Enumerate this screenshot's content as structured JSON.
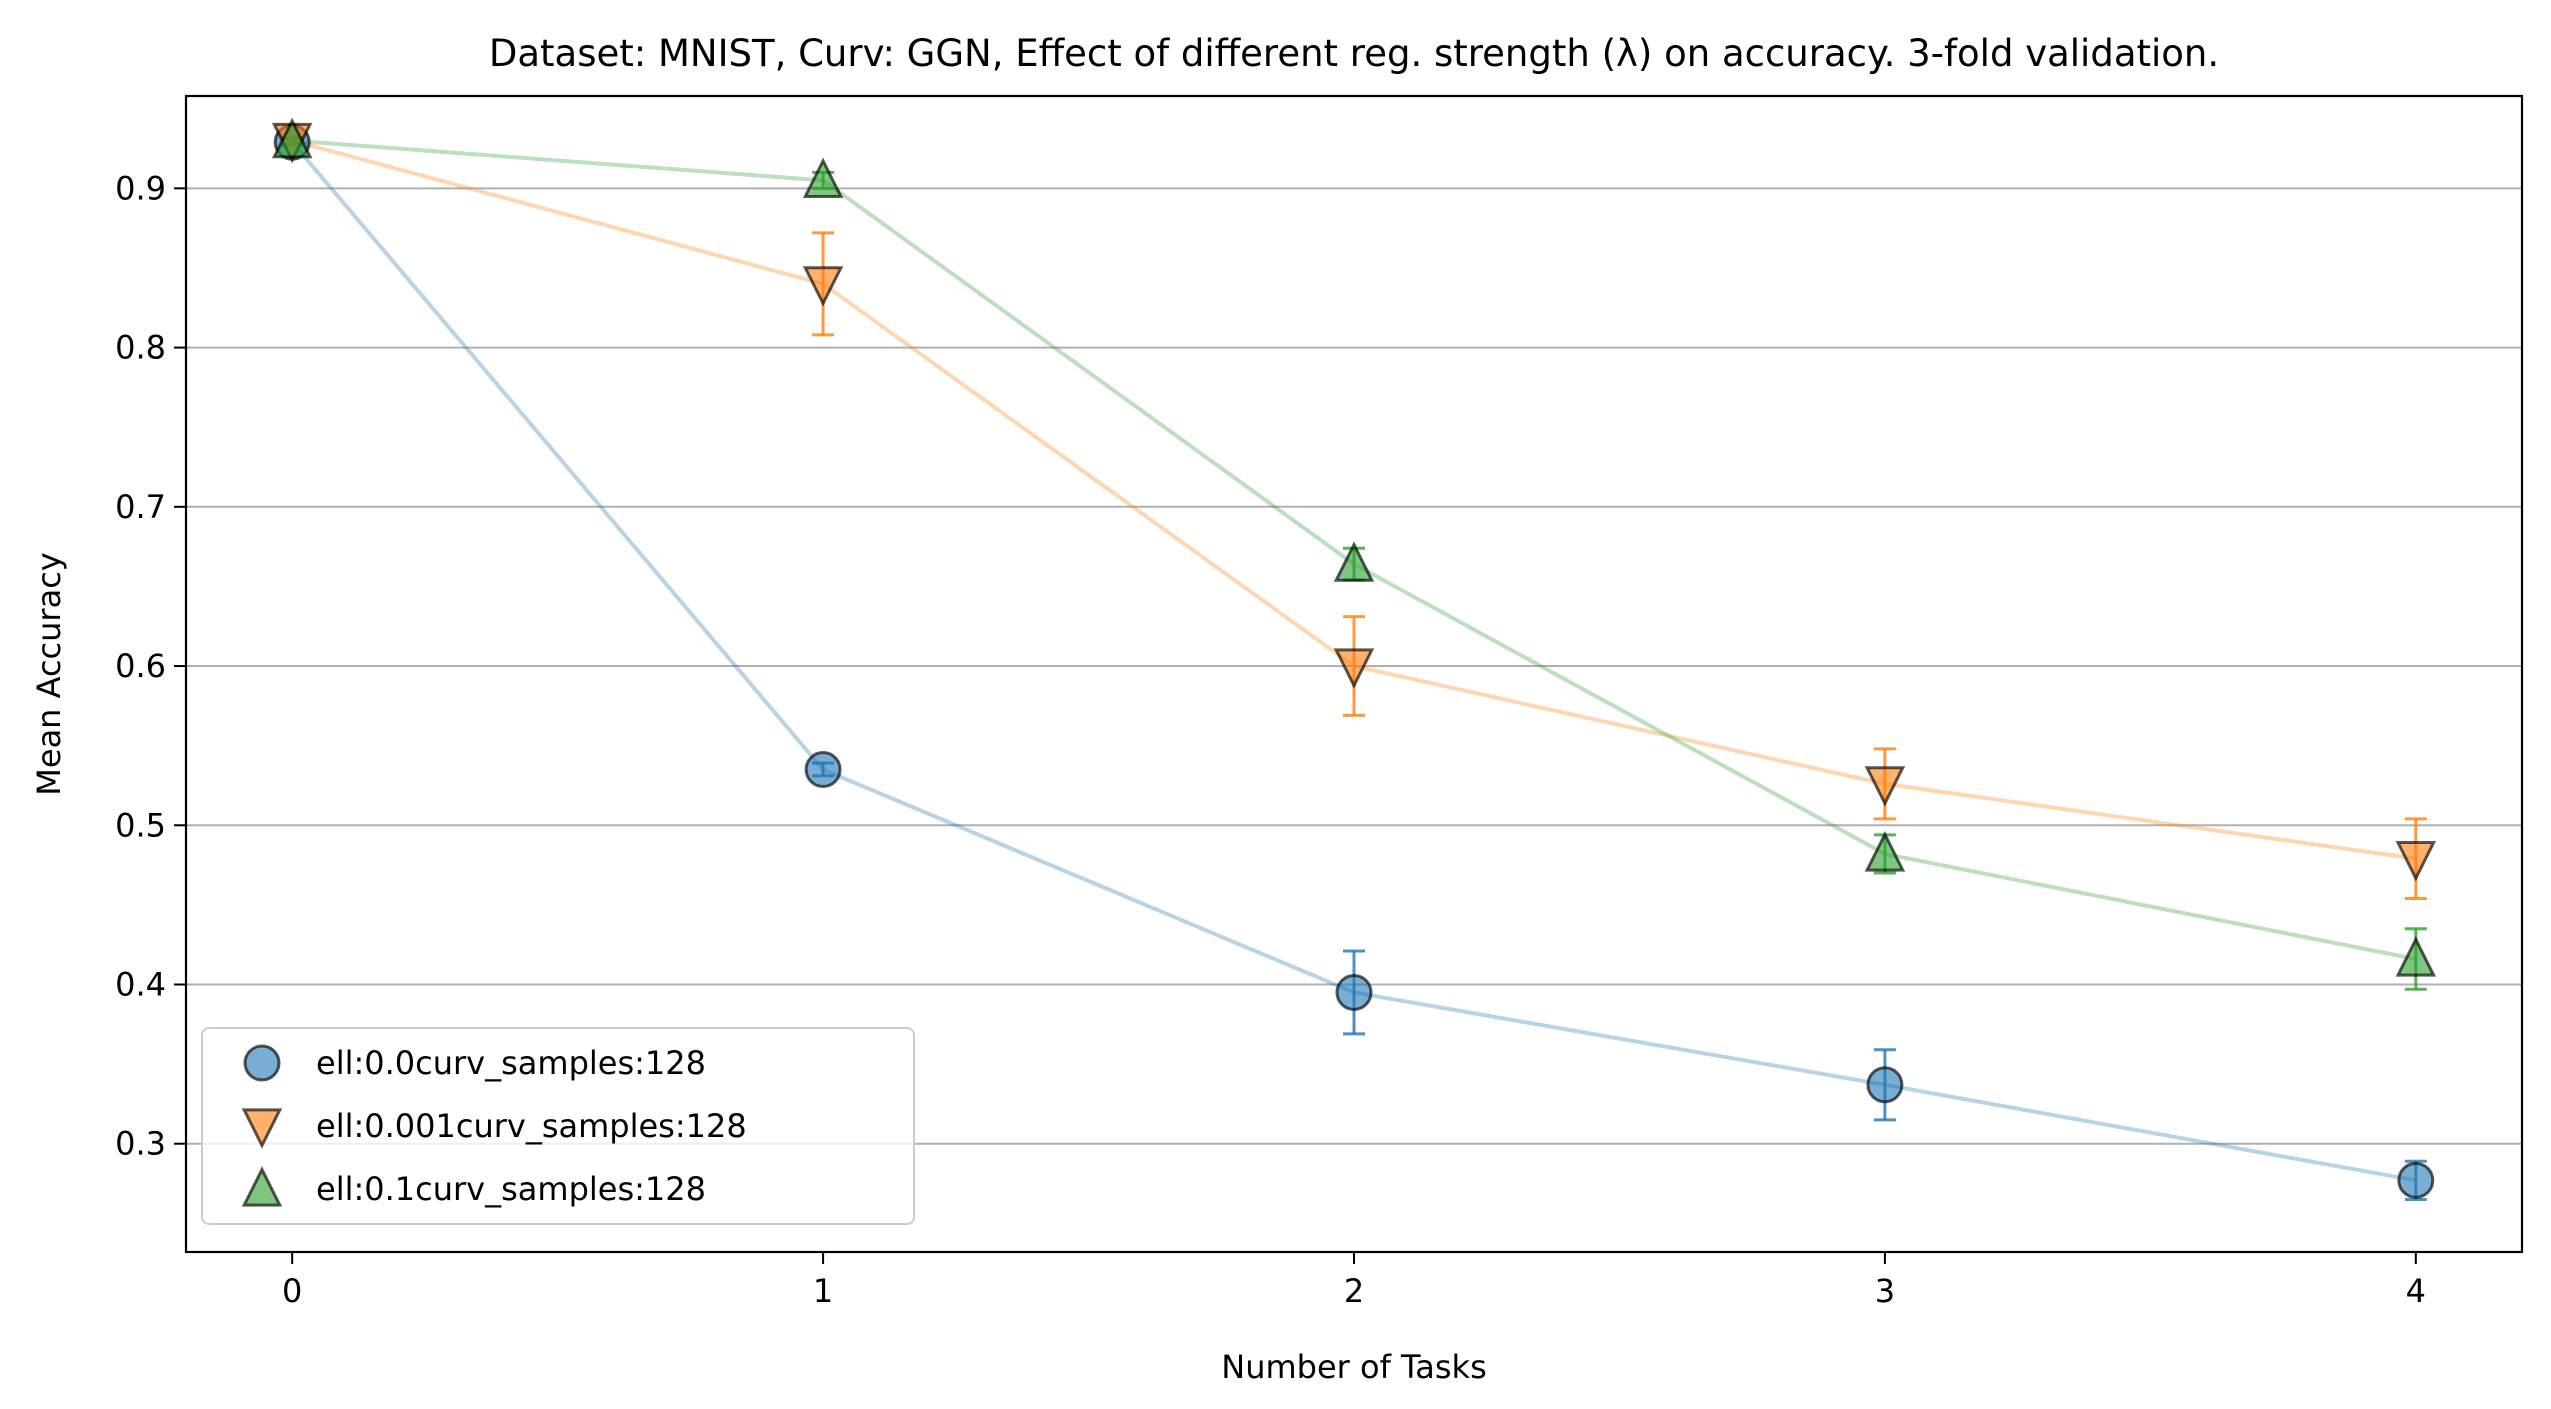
{
  "chart_data": {
    "type": "scatter",
    "title": "Dataset: MNIST, Curv: GGN, Effect of different reg. strength (λ) on accuracy. 3-fold validation.",
    "xlabel": "Number of Tasks",
    "ylabel": "Mean Accuracy",
    "xlim": [
      -0.2,
      4.2
    ],
    "ylim": [
      0.232,
      0.958
    ],
    "x_ticks": [
      "0",
      "1",
      "2",
      "3",
      "4"
    ],
    "y_ticks": [
      "0.3",
      "0.4",
      "0.5",
      "0.6",
      "0.7",
      "0.8",
      "0.9"
    ],
    "grid": "horizontal",
    "legend_position": "lower-left",
    "x": [
      0,
      1,
      2,
      3,
      4
    ],
    "series": [
      {
        "name": "ell:0.0curv_samples:128",
        "marker": "circle",
        "color": "#1f77b4",
        "values": [
          0.929,
          0.535,
          0.395,
          0.337,
          0.277
        ],
        "errors": [
          0.002,
          0.004,
          0.026,
          0.022,
          0.012
        ]
      },
      {
        "name": "ell:0.001curv_samples:128",
        "marker": "triangle-down",
        "color": "#ff7f0e",
        "values": [
          0.93,
          0.84,
          0.6,
          0.526,
          0.479
        ],
        "errors": [
          0.002,
          0.032,
          0.031,
          0.022,
          0.025
        ]
      },
      {
        "name": "ell:0.1curv_samples:128",
        "marker": "triangle-up",
        "color": "#2ca02c",
        "values": [
          0.93,
          0.905,
          0.664,
          0.482,
          0.416
        ],
        "errors": [
          0.002,
          0.005,
          0.01,
          0.012,
          0.019
        ]
      }
    ]
  }
}
